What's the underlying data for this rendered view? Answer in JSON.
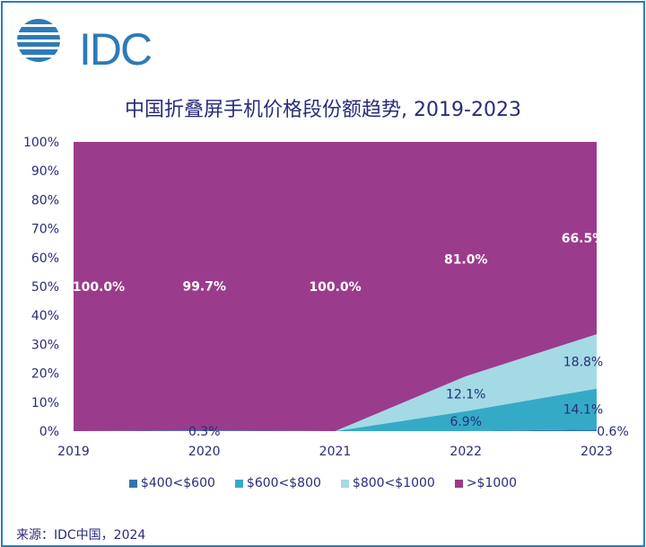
{
  "logo": {
    "text": "IDC"
  },
  "source": "来源：IDC中国，2024",
  "chart_data": {
    "type": "area",
    "stacked": true,
    "title": "中国折叠屏手机价格段份额趋势, 2019-2023",
    "categories": [
      "2019",
      "2020",
      "2021",
      "2022",
      "2023"
    ],
    "ylim": [
      0,
      100
    ],
    "yticks": [
      "0%",
      "10%",
      "20%",
      "30%",
      "40%",
      "50%",
      "60%",
      "70%",
      "80%",
      "90%",
      "100%"
    ],
    "grid": false,
    "legend_position": "bottom",
    "series": [
      {
        "name": "$400<$600",
        "color": "#2e75b6",
        "values": [
          0,
          0.3,
          0,
          0,
          0.6
        ],
        "labels": [
          "",
          "0.3%",
          "",
          "",
          "0.6%"
        ]
      },
      {
        "name": "$600<$800",
        "color": "#35aac7",
        "values": [
          0,
          0,
          0,
          6.9,
          14.1
        ],
        "labels": [
          "",
          "",
          "",
          "6.9%",
          "14.1%"
        ]
      },
      {
        "name": "$800<$1000",
        "color": "#a3dae5",
        "values": [
          0,
          0,
          0,
          12.1,
          18.8
        ],
        "labels": [
          "",
          "",
          "",
          "12.1%",
          "18.8%"
        ]
      },
      {
        "name": ">$1000",
        "color": "#9b3b8c",
        "values": [
          100,
          99.7,
          100,
          81.0,
          66.5
        ],
        "labels": [
          "100.0%",
          "99.7%",
          "100.0%",
          "81.0%",
          "66.5%"
        ]
      }
    ]
  }
}
